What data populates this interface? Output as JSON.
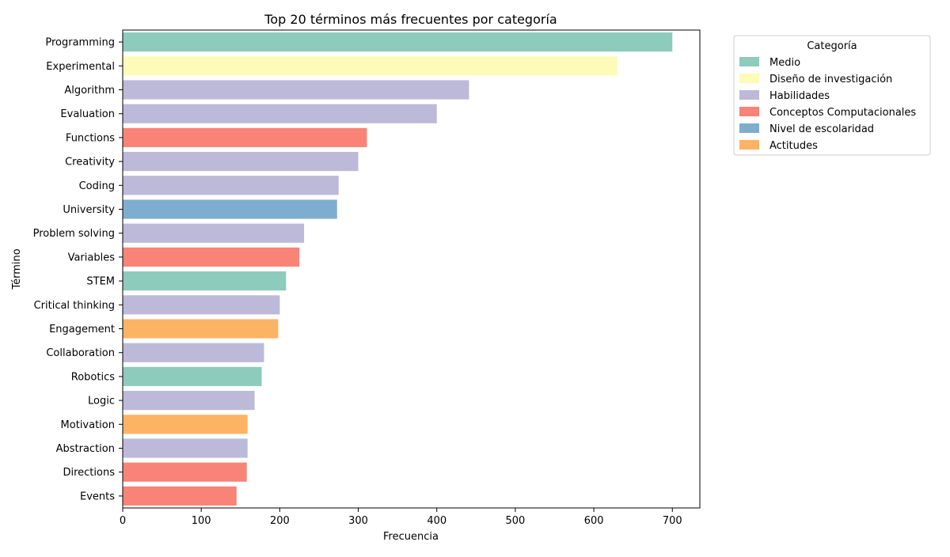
{
  "chart_data": {
    "type": "bar",
    "orientation": "horizontal",
    "title": "Top 20 términos más frecuentes por categoría",
    "xlabel": "Frecuencia",
    "ylabel": "Término",
    "xlim": [
      0,
      735
    ],
    "xticks": [
      0,
      100,
      200,
      300,
      400,
      500,
      600,
      700
    ],
    "grid": false,
    "legend": {
      "title": "Categoría",
      "placement": "outside-right-top",
      "entries": [
        {
          "name": "Medio",
          "color": "#8dcbbc"
        },
        {
          "name": "Diseño de investigación",
          "color": "#fdfbb8"
        },
        {
          "name": "Habilidades",
          "color": "#bcb9d9"
        },
        {
          "name": "Conceptos Computacionales",
          "color": "#f88376"
        },
        {
          "name": "Nivel de escolaridad",
          "color": "#7fadcf"
        },
        {
          "name": "Actitudes",
          "color": "#fdb364"
        }
      ]
    },
    "categories": [
      "Programming",
      "Experimental",
      "Algorithm",
      "Evaluation",
      "Functions",
      "Creativity",
      "Coding",
      "University",
      "Problem solving",
      "Variables",
      "STEM",
      "Critical thinking",
      "Engagement",
      "Collaboration",
      "Robotics",
      "Logic",
      "Motivation",
      "Abstraction",
      "Directions",
      "Events"
    ],
    "values": [
      700,
      630,
      441,
      400,
      311,
      300,
      275,
      273,
      231,
      225,
      208,
      200,
      198,
      180,
      177,
      168,
      159,
      159,
      158,
      145
    ],
    "bar_categories": [
      "Medio",
      "Diseño de investigación",
      "Habilidades",
      "Habilidades",
      "Conceptos Computacionales",
      "Habilidades",
      "Habilidades",
      "Nivel de escolaridad",
      "Habilidades",
      "Conceptos Computacionales",
      "Medio",
      "Habilidades",
      "Actitudes",
      "Habilidades",
      "Medio",
      "Habilidades",
      "Actitudes",
      "Habilidades",
      "Conceptos Computacionales",
      "Conceptos Computacionales"
    ]
  }
}
